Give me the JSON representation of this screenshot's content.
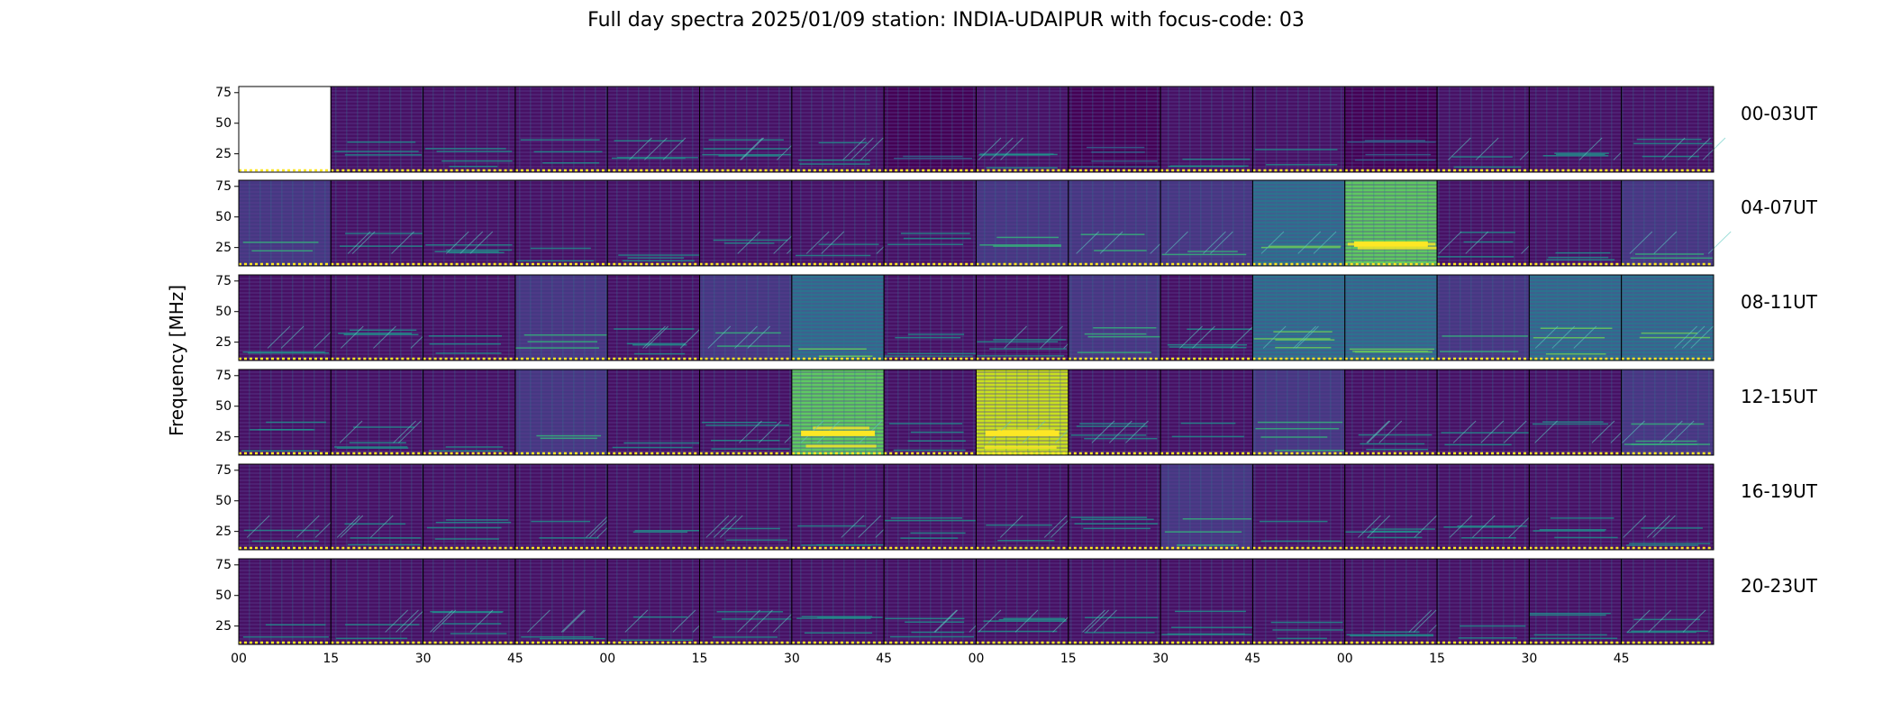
{
  "title": "Full day spectra 2025/01/09 station: INDIA-UDAIPUR with focus-code: 03",
  "colors": {
    "colormap": "viridis",
    "background_dark": "#440154",
    "mid": "#3b528b",
    "bright": "#21918c",
    "hot": "#fde725",
    "marker_line": "#fde725"
  },
  "chart_data": {
    "type": "heatmap",
    "layout": "grid of 6 rows x 16 columns of dynamic spectra (each 15 min)",
    "ylabel": "Frequency [MHz]",
    "ylim": [
      10,
      80
    ],
    "yticks": [
      25,
      50,
      75
    ],
    "xtick_labels": [
      "00",
      "15",
      "30",
      "45",
      "00",
      "15",
      "30",
      "45",
      "00",
      "15",
      "30",
      "45",
      "00",
      "15",
      "30",
      "45"
    ],
    "row_labels": [
      "00-03UT",
      "04-07UT",
      "08-11UT",
      "12-15UT",
      "16-19UT",
      "20-23UT"
    ],
    "intensity_level": [
      [
        null,
        1,
        1,
        1,
        1,
        1,
        1,
        0,
        1,
        0,
        1,
        1,
        0,
        1,
        1,
        1
      ],
      [
        2,
        1,
        1,
        1,
        1,
        1,
        1,
        1,
        2,
        2,
        2,
        3,
        5,
        1,
        1,
        2
      ],
      [
        1,
        1,
        1,
        2,
        1,
        2,
        3,
        1,
        1,
        2,
        1,
        3,
        3,
        2,
        3,
        3
      ],
      [
        1,
        1,
        1,
        2,
        1,
        1,
        5,
        1,
        6,
        1,
        1,
        2,
        1,
        1,
        1,
        2
      ],
      [
        1,
        1,
        1,
        1,
        1,
        1,
        1,
        1,
        1,
        1,
        2,
        1,
        1,
        1,
        1,
        1
      ],
      [
        1,
        1,
        1,
        1,
        1,
        1,
        1,
        1,
        1,
        1,
        1,
        1,
        1,
        1,
        1,
        1
      ]
    ]
  }
}
